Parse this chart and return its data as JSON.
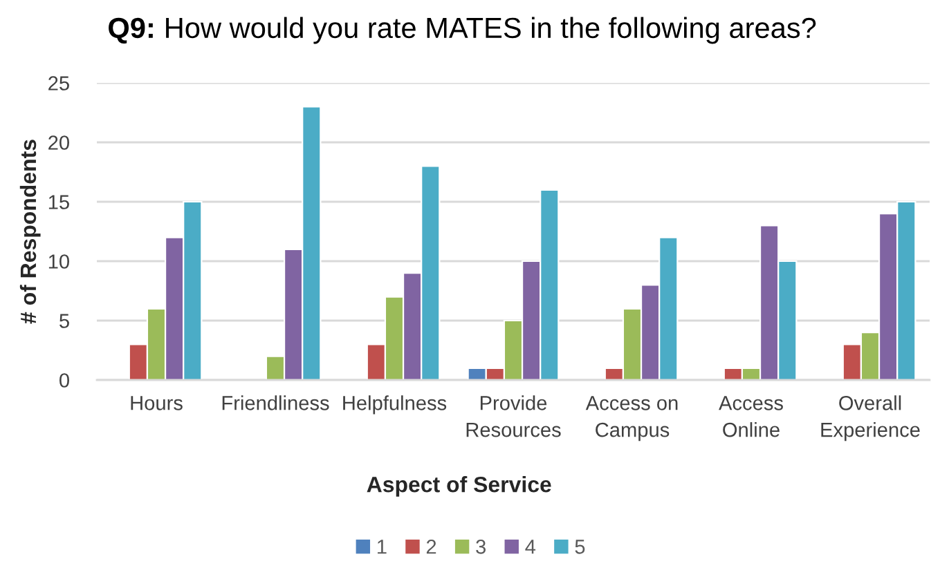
{
  "chart_data": {
    "type": "bar",
    "title": "Q9: How would you rate MATES in the following areas?",
    "xlabel": "Aspect of Service",
    "ylabel": "# of Respondents",
    "categories": [
      "Hours",
      "Friendliness",
      "Helpfulness",
      "Provide\nResources",
      "Access on\nCampus",
      "Access\nOnline",
      "Overall\nExperience"
    ],
    "series": [
      {
        "name": "1",
        "color": "#4f81bd",
        "values": [
          0,
          0,
          0,
          1,
          0,
          0,
          0
        ]
      },
      {
        "name": "2",
        "color": "#c0504d",
        "values": [
          3,
          0,
          3,
          1,
          1,
          1,
          3
        ]
      },
      {
        "name": "3",
        "color": "#9bbb59",
        "values": [
          6,
          2,
          7,
          5,
          6,
          1,
          4
        ]
      },
      {
        "name": "4",
        "color": "#8064a2",
        "values": [
          12,
          11,
          9,
          10,
          8,
          13,
          14
        ]
      },
      {
        "name": "5",
        "color": "#4bacc6",
        "values": [
          15,
          23,
          18,
          16,
          12,
          10,
          15
        ]
      }
    ],
    "ylim": [
      0,
      25
    ],
    "yticks": [
      0,
      5,
      10,
      15,
      20,
      25
    ],
    "grid": "y",
    "legend": "bottom"
  }
}
